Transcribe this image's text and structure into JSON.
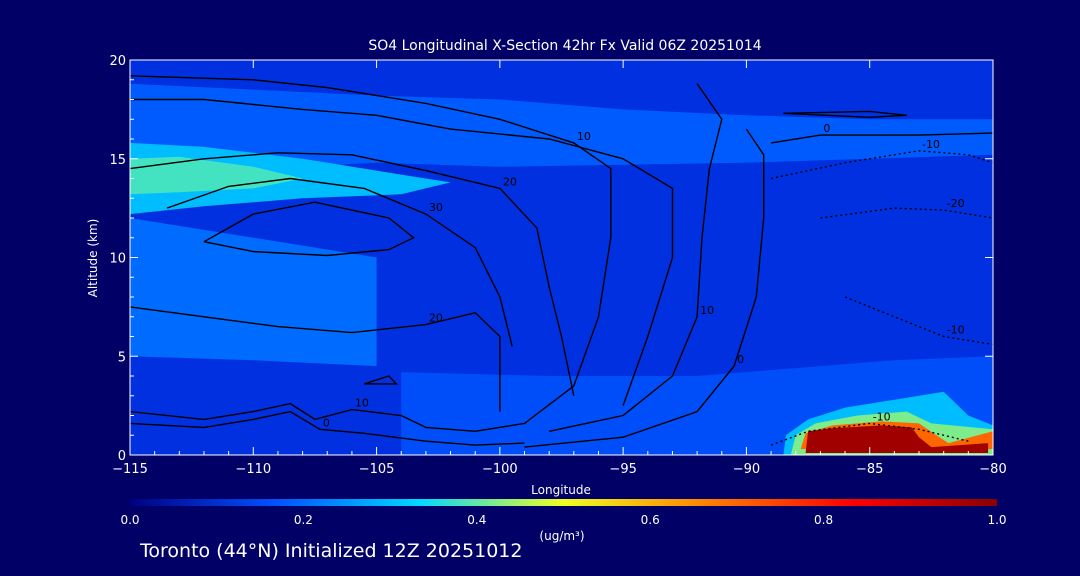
{
  "footer": {
    "caption": "Toronto (44°N) Initialized 12Z 20251012"
  },
  "chart_data": {
    "type": "heatmap",
    "title": "SO4 Longitudinal X-Section 42hr  Fx Valid 06Z 20251014",
    "xlabel": "Longitude",
    "ylabel": "Altitude (km)",
    "xlim": [
      -115,
      -80
    ],
    "ylim": [
      0,
      20
    ],
    "x_ticks": [
      -115,
      -110,
      -105,
      -100,
      -95,
      -90,
      -85,
      -80
    ],
    "y_ticks": [
      0,
      5,
      10,
      15,
      20
    ],
    "colorbar": {
      "unit_label": "(ug/m³)",
      "range": [
        0.0,
        1.0
      ],
      "ticks": [
        "0.0",
        "0.2",
        "0.4",
        "0.6",
        "0.8",
        "1.0"
      ],
      "colors": [
        "#000080",
        "#0050ff",
        "#00d8ff",
        "#f0ff20",
        "#ff8000",
        "#ff0000",
        "#8b0000"
      ]
    },
    "fill_regions": [
      {
        "name": "upper-layer",
        "value": 0.18,
        "points": [
          [
            -115,
            18.8
          ],
          [
            -110,
            18.5
          ],
          [
            -105,
            18.2
          ],
          [
            -100,
            18.0
          ],
          [
            -95,
            17.5
          ],
          [
            -90,
            17.2
          ],
          [
            -85,
            17.0
          ],
          [
            -80,
            17.0
          ],
          [
            -80,
            15.2
          ],
          [
            -85,
            15.0
          ],
          [
            -90,
            14.8
          ],
          [
            -95,
            14.7
          ],
          [
            -100,
            14.6
          ],
          [
            -105,
            14.8
          ],
          [
            -110,
            14.5
          ],
          [
            -115,
            13.5
          ]
        ]
      },
      {
        "name": "upper-left-plume",
        "value": 0.3,
        "points": [
          [
            -115,
            15.8
          ],
          [
            -112,
            15.6
          ],
          [
            -108,
            15.0
          ],
          [
            -104,
            14.2
          ],
          [
            -102,
            13.8
          ],
          [
            -104,
            13.2
          ],
          [
            -108,
            13.0
          ],
          [
            -112,
            12.6
          ],
          [
            -115,
            12.2
          ]
        ]
      },
      {
        "name": "upper-left-core",
        "value": 0.38,
        "points": [
          [
            -115,
            15.0
          ],
          [
            -113,
            15.1
          ],
          [
            -110,
            14.6
          ],
          [
            -108,
            14.0
          ],
          [
            -110,
            13.5
          ],
          [
            -113,
            13.3
          ],
          [
            -115,
            13.2
          ]
        ]
      },
      {
        "name": "left-low-band",
        "value": 0.2,
        "points": [
          [
            -115,
            12.0
          ],
          [
            -110,
            11.0
          ],
          [
            -105,
            10.0
          ],
          [
            -105,
            4.5
          ],
          [
            -110,
            4.8
          ],
          [
            -115,
            5.0
          ]
        ]
      },
      {
        "name": "boundary-layer",
        "value": 0.16,
        "points": [
          [
            -104,
            4.2
          ],
          [
            -98,
            4.0
          ],
          [
            -92,
            4.0
          ],
          [
            -88,
            4.4
          ],
          [
            -84,
            4.8
          ],
          [
            -80,
            5.0
          ],
          [
            -80,
            0
          ],
          [
            -104,
            0
          ]
        ]
      },
      {
        "name": "plume-outer",
        "value": 0.3,
        "points": [
          [
            -88.5,
            0
          ],
          [
            -88.4,
            1.0
          ],
          [
            -87.5,
            1.8
          ],
          [
            -86,
            2.4
          ],
          [
            -84,
            2.8
          ],
          [
            -82,
            3.2
          ],
          [
            -81,
            2.0
          ],
          [
            -80,
            1.5
          ],
          [
            -80,
            0
          ]
        ]
      },
      {
        "name": "plume-mid",
        "value": 0.42,
        "points": [
          [
            -88.2,
            0
          ],
          [
            -88,
            1.0
          ],
          [
            -87.2,
            1.6
          ],
          [
            -85.5,
            2.0
          ],
          [
            -83.5,
            2.2
          ],
          [
            -82.5,
            1.6
          ],
          [
            -80,
            1.3
          ],
          [
            -80,
            0
          ]
        ]
      },
      {
        "name": "plume-warm",
        "value": 0.7,
        "points": [
          [
            -87.8,
            0.3
          ],
          [
            -87.6,
            1.1
          ],
          [
            -86.5,
            1.5
          ],
          [
            -84.5,
            1.7
          ],
          [
            -83,
            1.6
          ],
          [
            -82.3,
            1.0
          ],
          [
            -81.8,
            0.6
          ],
          [
            -80,
            1.2
          ],
          [
            -80,
            0.3
          ]
        ]
      },
      {
        "name": "plume-core",
        "value": 0.97,
        "points": [
          [
            -87.6,
            0.1
          ],
          [
            -87.5,
            1.2
          ],
          [
            -86.5,
            1.35
          ],
          [
            -84.5,
            1.5
          ],
          [
            -83.3,
            1.4
          ],
          [
            -83.0,
            0.9
          ],
          [
            -82.5,
            0.4
          ],
          [
            -80.2,
            0.6
          ],
          [
            -80.2,
            0.1
          ]
        ]
      }
    ],
    "contours": [
      {
        "level": "",
        "style": "solid",
        "points": [
          [
            -115,
            18.0
          ],
          [
            -112,
            18.0
          ],
          [
            -108,
            17.5
          ],
          [
            -105,
            17.2
          ],
          [
            -102,
            16.5
          ],
          [
            -98,
            16.0
          ],
          [
            -95,
            15.0
          ],
          [
            -93,
            13.5
          ],
          [
            -93,
            10.0
          ],
          [
            -94,
            6.0
          ],
          [
            -95,
            2.5
          ]
        ]
      },
      {
        "level": "10",
        "style": "solid",
        "points": [
          [
            -115,
            19.2
          ],
          [
            -110,
            19.0
          ],
          [
            -107,
            18.6
          ],
          [
            -103,
            17.8
          ],
          [
            -100,
            17.0
          ],
          [
            -97,
            15.8
          ],
          [
            -95.5,
            14.5
          ],
          [
            -95.5,
            11.0
          ],
          [
            -96,
            7.0
          ],
          [
            -97,
            3.5
          ],
          [
            -99,
            1.6
          ]
        ]
      },
      {
        "level": "20",
        "style": "solid",
        "points": [
          [
            -115,
            14.5
          ],
          [
            -112,
            15.0
          ],
          [
            -109,
            15.3
          ],
          [
            -106,
            15.2
          ],
          [
            -103,
            14.4
          ],
          [
            -100,
            13.5
          ],
          [
            -98.5,
            11.5
          ],
          [
            -98,
            8.5
          ],
          [
            -97.5,
            6.0
          ],
          [
            -97,
            3.0
          ]
        ]
      },
      {
        "level": "30",
        "style": "solid",
        "points": [
          [
            -113.5,
            12.5
          ],
          [
            -111,
            13.6
          ],
          [
            -108.5,
            14.0
          ],
          [
            -105.5,
            13.5
          ],
          [
            -103,
            12.2
          ],
          [
            -101,
            10.5
          ],
          [
            -100,
            8.0
          ],
          [
            -99.5,
            5.5
          ]
        ]
      },
      {
        "level": "",
        "style": "solid",
        "points": [
          [
            -112,
            10.8
          ],
          [
            -110,
            12.2
          ],
          [
            -107.5,
            12.8
          ],
          [
            -104.5,
            12.0
          ],
          [
            -103.5,
            11.0
          ],
          [
            -104.5,
            10.4
          ],
          [
            -107,
            10.1
          ],
          [
            -110,
            10.3
          ],
          [
            -112,
            10.8
          ]
        ]
      },
      {
        "level": "20",
        "style": "solid",
        "points": [
          [
            -115,
            7.5
          ],
          [
            -112,
            7.0
          ],
          [
            -109,
            6.5
          ],
          [
            -106,
            6.2
          ],
          [
            -103,
            6.6
          ],
          [
            -101,
            7.2
          ],
          [
            -100,
            6.0
          ],
          [
            -100,
            3.5
          ],
          [
            -100,
            2.2
          ]
        ]
      },
      {
        "level": "10",
        "style": "solid",
        "points": [
          [
            -115,
            2.2
          ],
          [
            -112,
            1.8
          ],
          [
            -110,
            2.2
          ],
          [
            -108.5,
            2.6
          ],
          [
            -107.5,
            1.8
          ],
          [
            -106,
            2.3
          ],
          [
            -104,
            2.0
          ],
          [
            -103,
            1.4
          ],
          [
            -101,
            1.2
          ],
          [
            -99,
            1.6
          ]
        ]
      },
      {
        "level": "0",
        "style": "solid",
        "points": [
          [
            -115,
            1.6
          ],
          [
            -112,
            1.4
          ],
          [
            -110,
            1.8
          ],
          [
            -108.5,
            2.2
          ],
          [
            -107.3,
            1.3
          ],
          [
            -105.5,
            1.1
          ],
          [
            -103,
            0.7
          ],
          [
            -101,
            0.5
          ],
          [
            -99,
            0.6
          ]
        ]
      },
      {
        "level": "",
        "style": "solid",
        "points": [
          [
            -105.5,
            3.6
          ],
          [
            -104.5,
            4.0
          ],
          [
            -104.2,
            3.6
          ],
          [
            -105.5,
            3.6
          ]
        ]
      },
      {
        "level": "10",
        "style": "solid",
        "points": [
          [
            -92,
            18.8
          ],
          [
            -91,
            17.0
          ],
          [
            -91.5,
            14.5
          ],
          [
            -91.8,
            11.0
          ],
          [
            -92,
            7.0
          ],
          [
            -93,
            4.0
          ],
          [
            -95,
            2.0
          ],
          [
            -98,
            1.2
          ]
        ]
      },
      {
        "level": "0",
        "style": "solid",
        "points": [
          [
            -90,
            16.5
          ],
          [
            -89.3,
            15.2
          ],
          [
            -89.3,
            12.0
          ],
          [
            -89.6,
            8.0
          ],
          [
            -90.5,
            4.5
          ],
          [
            -92,
            2.2
          ],
          [
            -95,
            0.9
          ],
          [
            -99,
            0.4
          ]
        ]
      },
      {
        "level": "",
        "style": "solid",
        "points": [
          [
            -88.5,
            17.3
          ],
          [
            -85,
            17.4
          ],
          [
            -83.5,
            17.2
          ],
          [
            -85,
            17.1
          ],
          [
            -88.5,
            17.3
          ]
        ]
      },
      {
        "level": "0",
        "style": "solid",
        "points": [
          [
            -80,
            16.3
          ],
          [
            -83,
            16.2
          ],
          [
            -87,
            16.2
          ],
          [
            -89,
            15.8
          ]
        ]
      },
      {
        "level": "-10",
        "style": "dotted",
        "points": [
          [
            -89,
            14.0
          ],
          [
            -86,
            14.8
          ],
          [
            -83,
            15.4
          ],
          [
            -81,
            15.2
          ],
          [
            -80,
            14.8
          ]
        ]
      },
      {
        "level": "-20",
        "style": "dotted",
        "points": [
          [
            -87,
            12.0
          ],
          [
            -84,
            12.5
          ],
          [
            -82,
            12.4
          ],
          [
            -80,
            12.0
          ]
        ]
      },
      {
        "level": "-10",
        "style": "dotted",
        "points": [
          [
            -86,
            8.0
          ],
          [
            -84,
            7.0
          ],
          [
            -82,
            6.0
          ],
          [
            -80,
            5.6
          ]
        ]
      },
      {
        "level": "-10",
        "style": "dotted",
        "points": [
          [
            -89,
            0.5
          ],
          [
            -87.5,
            1.2
          ],
          [
            -85,
            1.6
          ],
          [
            -83,
            1.3
          ],
          [
            -81,
            0.7
          ]
        ]
      }
    ]
  }
}
